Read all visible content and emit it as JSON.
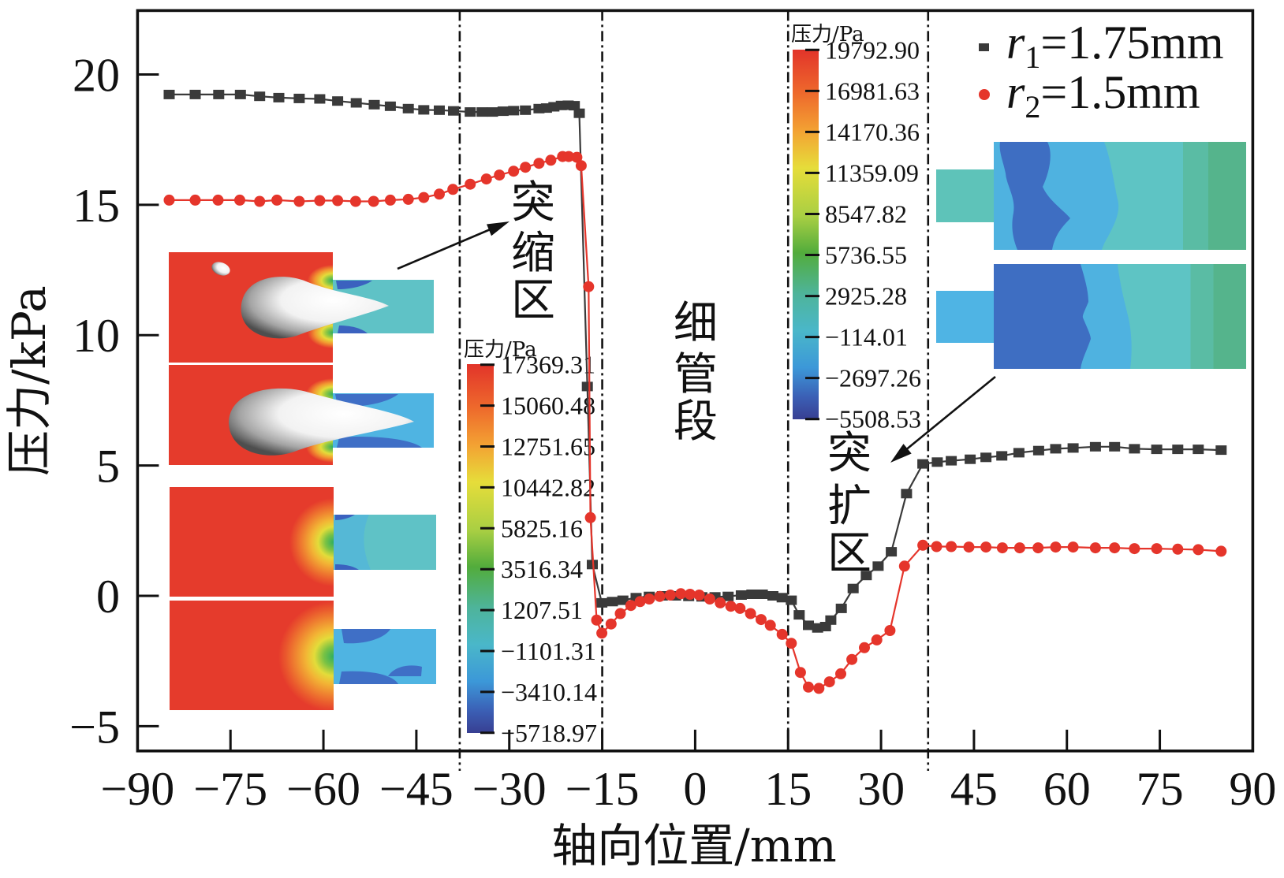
{
  "chart_data": {
    "type": "line",
    "title": "",
    "xlabel": "轴向位置/mm",
    "ylabel": "压力/kPa",
    "xlim": [
      -90,
      90
    ],
    "ylim": [
      -5.95,
      22.45
    ],
    "xticks": [
      -90,
      -75,
      -60,
      -45,
      -30,
      -15,
      0,
      15,
      30,
      45,
      60,
      75,
      90
    ],
    "xtick_labels": [
      "−90",
      "−75",
      "−60",
      "−45",
      "−30",
      "−15",
      "0",
      "15",
      "30",
      "45",
      "60",
      "75",
      "90"
    ],
    "yticks": [
      -5,
      0,
      5,
      10,
      15,
      20
    ],
    "ytick_labels": [
      "−5",
      "0",
      "5",
      "10",
      "15",
      "20"
    ],
    "grid": false,
    "legend_position": "top-right",
    "legend": [
      {
        "var": "r",
        "sub": "1",
        "value": "=1.75mm",
        "marker": "square"
      },
      {
        "var": "r",
        "sub": "2",
        "value": "=1.5mm",
        "marker": "circle"
      }
    ],
    "vlines": {
      "x": [
        -38,
        -15,
        15,
        37.6
      ],
      "style": "dash-dot"
    },
    "series": [
      {
        "name": "r1=1.75mm",
        "marker": "square",
        "color": "#3a3a3a",
        "x": [
          -84.9,
          -80.7,
          -76.9,
          -73.4,
          -70.3,
          -67.2,
          -63.9,
          -60.6,
          -57.7,
          -54.7,
          -51.8,
          -49.2,
          -46.3,
          -43.8,
          -41.3,
          -39.0,
          -36.3,
          -34.4,
          -32.7,
          -31.0,
          -29.3,
          -27.4,
          -25.2,
          -24.0,
          -22.8,
          -21.6,
          -20.5,
          -19.5,
          -18.7,
          -17.4,
          -16.6,
          -15.06,
          -13.35,
          -11.66,
          -9.53,
          -7.41,
          -5.29,
          -3.16,
          -1.04,
          1.08,
          3.21,
          5.32,
          7.45,
          9.15,
          10.85,
          12.55,
          14.04,
          15.52,
          16.79,
          18.28,
          19.77,
          21.04,
          21.89,
          23.59,
          25.5,
          27.62,
          29.53,
          31.66,
          34.11,
          36.75,
          39.08,
          41.34,
          44.39,
          46.94,
          49.49,
          52.25,
          55.44,
          58.19,
          61.0,
          64.6,
          67.7,
          70.9,
          74.5,
          77.9,
          81.2,
          84.9
        ],
        "y": [
          19.23,
          19.23,
          19.23,
          19.23,
          19.16,
          19.11,
          19.08,
          19.06,
          18.98,
          18.91,
          18.84,
          18.78,
          18.69,
          18.64,
          18.63,
          18.6,
          18.56,
          18.56,
          18.56,
          18.59,
          18.61,
          18.63,
          18.69,
          18.71,
          18.76,
          18.81,
          18.82,
          18.8,
          18.51,
          8.03,
          1.2,
          -0.27,
          -0.22,
          -0.17,
          -0.07,
          -0.02,
          0.0,
          0.0,
          -0.02,
          -0.04,
          -0.04,
          -0.02,
          0.03,
          0.06,
          0.06,
          0.0,
          -0.07,
          -0.17,
          -0.73,
          -1.13,
          -1.23,
          -1.18,
          -0.93,
          -0.48,
          0.28,
          0.78,
          1.14,
          1.69,
          3.92,
          5.06,
          5.13,
          5.18,
          5.24,
          5.31,
          5.37,
          5.49,
          5.57,
          5.64,
          5.67,
          5.72,
          5.72,
          5.64,
          5.62,
          5.62,
          5.62,
          5.59
        ]
      },
      {
        "name": "r2=1.5mm",
        "marker": "circle",
        "color": "#e5352b",
        "x": [
          -84.9,
          -80.7,
          -77.0,
          -73.5,
          -70.3,
          -67.5,
          -63.9,
          -60.6,
          -57.7,
          -54.8,
          -51.9,
          -49.2,
          -46.3,
          -43.8,
          -41.3,
          -39.1,
          -36.3,
          -33.7,
          -31.6,
          -29.3,
          -27.4,
          -25.2,
          -23.3,
          -21.4,
          -20.4,
          -19.1,
          -18.4,
          -17.2,
          -16.9,
          -15.9,
          -15.06,
          -13.57,
          -12.08,
          -10.38,
          -8.89,
          -7.41,
          -5.71,
          -4.01,
          -2.32,
          -0.83,
          0.66,
          2.36,
          4.05,
          5.76,
          7.24,
          8.94,
          10.64,
          12.13,
          14.04,
          15.52,
          17.0,
          18.28,
          19.97,
          21.68,
          23.5,
          25.29,
          27.32,
          29.32,
          31.44,
          33.78,
          36.75,
          38.96,
          41.34,
          44.18,
          46.94,
          49.58,
          52.38,
          55.35,
          58.19,
          61.0,
          64.6,
          67.7,
          70.9,
          74.5,
          77.9,
          81.2,
          84.9
        ],
        "y": [
          15.18,
          15.18,
          15.18,
          15.18,
          15.13,
          15.18,
          15.13,
          15.16,
          15.16,
          15.13,
          15.13,
          15.18,
          15.21,
          15.28,
          15.41,
          15.59,
          15.79,
          15.99,
          16.14,
          16.29,
          16.44,
          16.59,
          16.71,
          16.85,
          16.85,
          16.82,
          16.5,
          11.86,
          3.0,
          -0.93,
          -1.43,
          -1.08,
          -0.68,
          -0.37,
          -0.22,
          -0.12,
          -0.02,
          0.03,
          0.08,
          0.06,
          0.03,
          -0.12,
          -0.27,
          -0.4,
          -0.48,
          -0.68,
          -0.91,
          -1.13,
          -1.48,
          -1.82,
          -2.94,
          -3.5,
          -3.55,
          -3.3,
          -2.99,
          -2.44,
          -1.99,
          -1.69,
          -1.33,
          1.14,
          1.94,
          1.89,
          1.89,
          1.87,
          1.87,
          1.84,
          1.84,
          1.84,
          1.87,
          1.87,
          1.84,
          1.84,
          1.81,
          1.81,
          1.79,
          1.77,
          1.71
        ]
      }
    ],
    "annotations": {
      "contraction_zone": {
        "text": "突缩区",
        "chars": [
          "突",
          "缩",
          "区"
        ]
      },
      "thin_tube": {
        "text": "细管段",
        "chars": [
          "细",
          "管",
          "段"
        ]
      },
      "expansion_zone": {
        "text": "突扩区",
        "chars": [
          "突",
          "扩",
          "区"
        ]
      }
    },
    "colorbars": [
      {
        "title": "压力/Pa",
        "ticks": [
          "17369.31",
          "15060.48",
          "12751.65",
          "10442.82",
          "5825.16",
          "3516.34",
          "1207.51",
          "−1101.31",
          "−3410.14",
          "−5718.97"
        ]
      },
      {
        "title": "压力/Pa",
        "ticks": [
          "19792.90",
          "16981.63",
          "14170.36",
          "11359.09",
          "8547.82",
          "5736.55",
          "2925.28",
          "−114.01",
          "−2697.26",
          "−5508.53"
        ]
      }
    ]
  }
}
